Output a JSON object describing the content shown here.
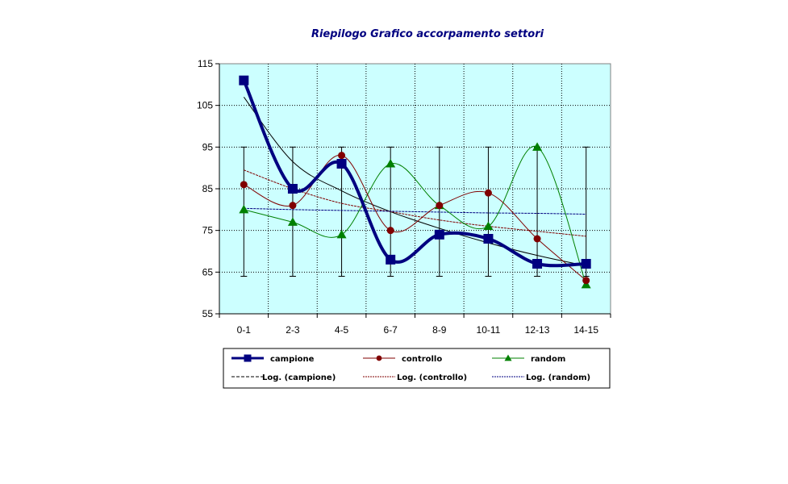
{
  "chart_data": {
    "type": "line",
    "title": "Riepilogo Grafico accorpamento settori",
    "xlabel": "",
    "ylabel": "",
    "categories": [
      "0-1",
      "2-3",
      "4-5",
      "6-7",
      "8-9",
      "10-11",
      "12-13",
      "14-15"
    ],
    "ylim": [
      55,
      115
    ],
    "yticks": [
      55,
      65,
      75,
      85,
      95,
      105,
      115
    ],
    "grid": true,
    "plot_background": "#CCFFFF",
    "error_bars": {
      "low": 64,
      "high": 95
    },
    "series": [
      {
        "name": "campione",
        "values": [
          111,
          85,
          91,
          68,
          74,
          73,
          67,
          67
        ],
        "color": "#000080",
        "marker": "square"
      },
      {
        "name": "controllo",
        "values": [
          86,
          81,
          93,
          75,
          81,
          84,
          73,
          63
        ],
        "color": "#800000",
        "marker": "circle"
      },
      {
        "name": "random",
        "values": [
          80,
          77,
          74,
          91,
          81,
          76,
          95,
          62
        ],
        "color": "#008000",
        "marker": "triangle"
      }
    ],
    "trendlines": [
      {
        "name": "Log. (campione)",
        "values": [
          107,
          91.5,
          84.5,
          79.5,
          75.5,
          72,
          69,
          66.5
        ],
        "color": "#000000"
      },
      {
        "name": "Log. (controllo)",
        "values": [
          89.5,
          85,
          81.5,
          79.5,
          77.5,
          76,
          74.8,
          73.6
        ],
        "color": "#800000"
      },
      {
        "name": "Log. (random)",
        "values": [
          80.3,
          80,
          79.8,
          79.6,
          79.4,
          79.2,
          79.1,
          78.9
        ],
        "color": "#000080"
      }
    ],
    "legend": {
      "position": "bottom",
      "entries": [
        "campione",
        "controllo",
        "random",
        "Log. (campione)",
        "Log. (controllo)",
        "Log. (random)"
      ]
    }
  }
}
